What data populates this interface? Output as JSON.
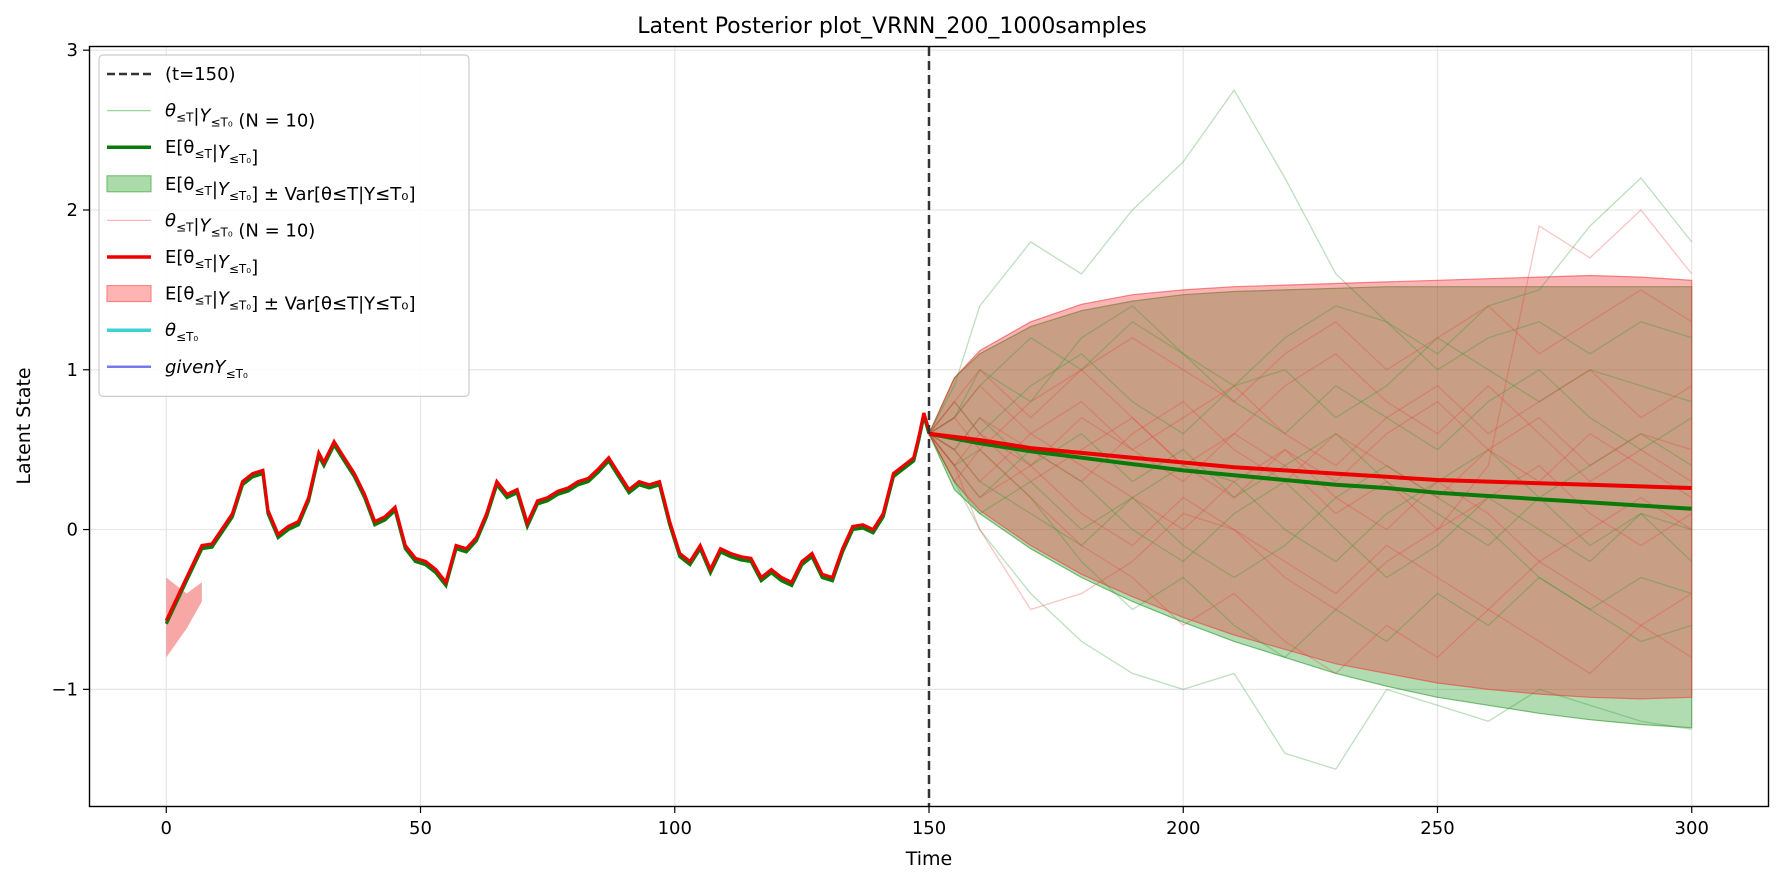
{
  "chart_data": {
    "type": "line",
    "title": "Latent Posterior plot_VRNN_200_1000samples",
    "xlabel": "Time",
    "ylabel": "Latent State",
    "xlim": [
      -15,
      315
    ],
    "ylim": [
      -1.73,
      3.02
    ],
    "xticks": [
      0,
      50,
      100,
      150,
      200,
      250,
      300
    ],
    "xtick_labels": [
      "0",
      "50",
      "100",
      "150",
      "200",
      "250",
      "300"
    ],
    "yticks": [
      -1,
      0,
      1,
      2,
      3
    ],
    "ytick_labels": [
      "−1",
      "0",
      "1",
      "2",
      "3"
    ],
    "grid": true,
    "legend_position": "upper-left",
    "vline": {
      "x": 150,
      "label": "(t=150)",
      "color": "#333333"
    },
    "history": {
      "x": [
        0,
        4,
        7,
        9,
        13,
        15,
        17,
        19,
        20,
        22,
        24,
        26,
        28,
        30,
        31,
        33,
        35,
        37,
        39,
        41,
        43,
        45,
        47,
        49,
        51,
        53,
        55,
        57,
        59,
        61,
        63,
        65,
        67,
        69,
        71,
        73,
        75,
        77,
        79,
        81,
        83,
        85,
        87,
        89,
        91,
        93,
        95,
        97,
        99,
        101,
        103,
        105,
        107,
        109,
        111,
        113,
        115,
        117,
        119,
        121,
        123,
        125,
        127,
        129,
        131,
        133,
        135,
        137,
        139,
        141,
        143,
        145,
        147,
        148,
        149,
        150
      ],
      "y": [
        -0.57,
        -0.3,
        -0.1,
        -0.09,
        0.1,
        0.3,
        0.35,
        0.37,
        0.12,
        -0.03,
        0.02,
        0.05,
        0.2,
        0.48,
        0.42,
        0.55,
        0.45,
        0.35,
        0.22,
        0.05,
        0.08,
        0.14,
        -0.1,
        -0.18,
        -0.2,
        -0.25,
        -0.33,
        -0.1,
        -0.12,
        -0.05,
        0.1,
        0.3,
        0.22,
        0.25,
        0.04,
        0.18,
        0.2,
        0.24,
        0.26,
        0.3,
        0.32,
        0.38,
        0.45,
        0.35,
        0.25,
        0.3,
        0.28,
        0.3,
        0.05,
        -0.15,
        -0.2,
        -0.1,
        -0.25,
        -0.12,
        -0.15,
        -0.17,
        -0.18,
        -0.3,
        -0.25,
        -0.3,
        -0.33,
        -0.2,
        -0.15,
        -0.28,
        -0.3,
        -0.12,
        0.02,
        0.03,
        0.0,
        0.1,
        0.35,
        0.4,
        0.45,
        0.58,
        0.73,
        0.62
      ],
      "band_lower": [
        -0.8,
        -0.62,
        -0.45
      ],
      "band_upper": [
        -0.3,
        -0.4,
        -0.33
      ]
    },
    "forecast": {
      "x": [
        150,
        155,
        160,
        170,
        180,
        190,
        200,
        210,
        220,
        230,
        240,
        250,
        260,
        270,
        280,
        290,
        300
      ],
      "green_mean": [
        0.6,
        0.57,
        0.54,
        0.49,
        0.45,
        0.41,
        0.37,
        0.34,
        0.31,
        0.28,
        0.26,
        0.23,
        0.21,
        0.19,
        0.17,
        0.15,
        0.13
      ],
      "green_band_upper": [
        0.6,
        0.95,
        1.1,
        1.27,
        1.37,
        1.43,
        1.47,
        1.49,
        1.5,
        1.51,
        1.52,
        1.52,
        1.52,
        1.52,
        1.52,
        1.52,
        1.52
      ],
      "green_band_lower": [
        0.6,
        0.25,
        0.1,
        -0.12,
        -0.3,
        -0.45,
        -0.58,
        -0.7,
        -0.8,
        -0.9,
        -0.98,
        -1.05,
        -1.1,
        -1.15,
        -1.19,
        -1.22,
        -1.24
      ],
      "red_mean": [
        0.6,
        0.58,
        0.56,
        0.51,
        0.48,
        0.45,
        0.42,
        0.39,
        0.37,
        0.35,
        0.33,
        0.31,
        0.3,
        0.29,
        0.28,
        0.27,
        0.26
      ],
      "red_band_upper": [
        0.6,
        0.95,
        1.12,
        1.3,
        1.41,
        1.47,
        1.5,
        1.52,
        1.53,
        1.54,
        1.55,
        1.56,
        1.57,
        1.58,
        1.59,
        1.58,
        1.56
      ],
      "red_band_lower": [
        0.6,
        0.3,
        0.12,
        -0.1,
        -0.28,
        -0.42,
        -0.55,
        -0.66,
        -0.75,
        -0.84,
        -0.9,
        -0.96,
        -1.0,
        -1.03,
        -1.05,
        -1.06,
        -1.05
      ]
    },
    "sample_paths_green": [
      [
        0.6,
        0.9,
        1.4,
        1.8,
        1.6,
        2.0,
        2.3,
        2.75,
        2.2,
        1.6,
        1.3,
        1.1,
        1.4,
        1.5,
        1.9,
        2.2,
        1.8
      ],
      [
        0.6,
        0.3,
        0.0,
        -0.4,
        -0.7,
        -0.9,
        -1.0,
        -0.9,
        -1.4,
        -1.5,
        -1.0,
        -1.1,
        -1.2,
        -1.0,
        -1.1,
        -1.2,
        -1.25
      ],
      [
        0.6,
        0.7,
        0.9,
        1.2,
        1.0,
        1.3,
        1.1,
        0.9,
        1.2,
        1.4,
        1.3,
        1.0,
        1.2,
        1.3,
        1.1,
        1.3,
        1.2
      ],
      [
        0.6,
        0.4,
        0.2,
        0.5,
        0.3,
        0.0,
        -0.2,
        0.1,
        0.3,
        0.0,
        -0.3,
        -0.1,
        0.2,
        0.0,
        -0.2,
        0.1,
        0.0
      ],
      [
        0.6,
        0.8,
        0.6,
        0.9,
        1.1,
        0.8,
        0.6,
        0.9,
        1.0,
        0.7,
        0.9,
        1.2,
        1.0,
        0.8,
        1.0,
        0.9,
        0.8
      ],
      [
        0.6,
        0.5,
        0.3,
        0.1,
        -0.1,
        0.2,
        0.4,
        0.3,
        0.0,
        -0.2,
        0.1,
        0.3,
        0.5,
        0.2,
        0.4,
        0.6,
        0.4
      ],
      [
        0.6,
        0.4,
        0.5,
        0.2,
        -0.2,
        -0.5,
        -0.3,
        -0.6,
        -0.8,
        -0.5,
        -0.7,
        -0.4,
        -0.6,
        -0.3,
        -0.5,
        -0.7,
        -0.6
      ],
      [
        0.6,
        0.7,
        1.0,
        0.8,
        1.2,
        1.4,
        1.1,
        0.8,
        0.6,
        0.9,
        0.7,
        0.5,
        0.8,
        1.0,
        0.7,
        0.5,
        0.7
      ],
      [
        0.6,
        0.5,
        0.7,
        0.4,
        0.6,
        0.3,
        0.5,
        0.2,
        0.4,
        0.6,
        0.3,
        0.1,
        -0.1,
        0.2,
        -0.1,
        0.1,
        -0.2
      ],
      [
        0.6,
        0.3,
        0.1,
        0.3,
        0.0,
        0.2,
        -0.1,
        -0.3,
        -0.1,
        0.2,
        0.4,
        0.2,
        0.0,
        -0.3,
        -0.5,
        -0.3,
        -0.4
      ]
    ],
    "sample_paths_red": [
      [
        0.6,
        0.4,
        0.0,
        -0.5,
        -0.4,
        -0.2,
        0.1,
        0.0,
        -0.3,
        -0.5,
        -0.2,
        0.0,
        0.4,
        1.9,
        1.7,
        2.0,
        1.6
      ],
      [
        0.6,
        0.8,
        1.0,
        0.7,
        1.0,
        1.2,
        1.0,
        0.8,
        1.1,
        1.3,
        1.0,
        1.2,
        1.4,
        1.1,
        1.3,
        1.5,
        1.3
      ],
      [
        0.6,
        0.5,
        0.7,
        0.5,
        0.3,
        0.6,
        0.8,
        0.5,
        0.3,
        0.6,
        0.4,
        0.2,
        0.5,
        0.7,
        0.4,
        0.6,
        0.5
      ],
      [
        0.6,
        0.4,
        0.2,
        0.4,
        0.1,
        -0.1,
        0.2,
        0.0,
        -0.2,
        -0.4,
        -0.1,
        -0.3,
        -0.5,
        -0.2,
        -0.4,
        -0.6,
        -0.4
      ],
      [
        0.6,
        0.7,
        0.9,
        0.6,
        0.8,
        0.5,
        0.7,
        0.9,
        0.6,
        0.4,
        0.7,
        0.9,
        0.6,
        0.8,
        1.0,
        0.7,
        0.9
      ],
      [
        0.6,
        0.5,
        0.3,
        0.6,
        0.4,
        0.2,
        0.0,
        0.3,
        0.5,
        0.2,
        0.0,
        0.3,
        0.1,
        -0.2,
        0.0,
        0.2,
        0.0
      ],
      [
        0.6,
        0.3,
        0.5,
        0.2,
        -0.1,
        -0.3,
        -0.6,
        -0.4,
        -0.7,
        -0.9,
        -0.6,
        -0.8,
        -0.5,
        -0.7,
        -0.9,
        -0.6,
        -0.8
      ],
      [
        0.6,
        0.7,
        0.5,
        0.8,
        1.0,
        0.7,
        0.4,
        0.6,
        0.9,
        1.1,
        0.8,
        0.6,
        0.9,
        0.6,
        0.3,
        0.5,
        0.3
      ],
      [
        0.6,
        0.4,
        0.6,
        0.3,
        0.5,
        0.7,
        0.4,
        0.2,
        0.5,
        0.3,
        0.6,
        0.8,
        0.5,
        0.3,
        0.6,
        0.4,
        0.2
      ],
      [
        0.6,
        0.8,
        0.6,
        0.4,
        0.7,
        0.5,
        0.3,
        0.6,
        0.4,
        0.1,
        0.3,
        0.0,
        0.2,
        0.4,
        0.1,
        -0.1,
        0.1
      ]
    ],
    "series": [
      {
        "label_main": "(t=150)",
        "kind": "dashed",
        "color": "#333333"
      },
      {
        "label_main": "θ",
        "label_sub": "≤T",
        "label_mid": "|Y",
        "label_sub2": "≤T₀",
        "label_tail": " (N = 10)",
        "kind": "thin",
        "color": "#99d699"
      },
      {
        "label_main": "E[θ",
        "label_sub": "≤T",
        "label_mid": "|Y",
        "label_sub2": "≤T₀",
        "label_tail": "]",
        "kind": "thick",
        "color": "#0a7a0a"
      },
      {
        "label_main": "E[θ",
        "label_sub": "≤T",
        "label_mid": "|Y",
        "label_sub2": "≤T₀",
        "label_tail": "] ± Var[θ≤T|Y≤T₀]",
        "kind": "patch",
        "color": "#66bb66"
      },
      {
        "label_main": "θ",
        "label_sub": "≤T",
        "label_mid": "|Y",
        "label_sub2": "≤T₀",
        "label_tail": " (N = 10)",
        "kind": "thin",
        "color": "#ffb3b3"
      },
      {
        "label_main": "E[θ",
        "label_sub": "≤T",
        "label_mid": "|Y",
        "label_sub2": "≤T₀",
        "label_tail": "]",
        "kind": "thick",
        "color": "#ee0000"
      },
      {
        "label_main": "E[θ",
        "label_sub": "≤T",
        "label_mid": "|Y",
        "label_sub2": "≤T₀",
        "label_tail": "] ± Var[θ≤T|Y≤T₀]",
        "kind": "patch",
        "color": "#ff7777"
      },
      {
        "label_main": "θ",
        "label_sub": "≤T₀",
        "label_mid": "",
        "label_sub2": "",
        "label_tail": "",
        "kind": "thick",
        "color": "#3fd0d0"
      },
      {
        "label_main": "givenY",
        "label_sub": "≤T₀",
        "label_mid": "",
        "label_sub2": "",
        "label_tail": "",
        "kind": "medium",
        "color": "#7777ee"
      }
    ]
  }
}
